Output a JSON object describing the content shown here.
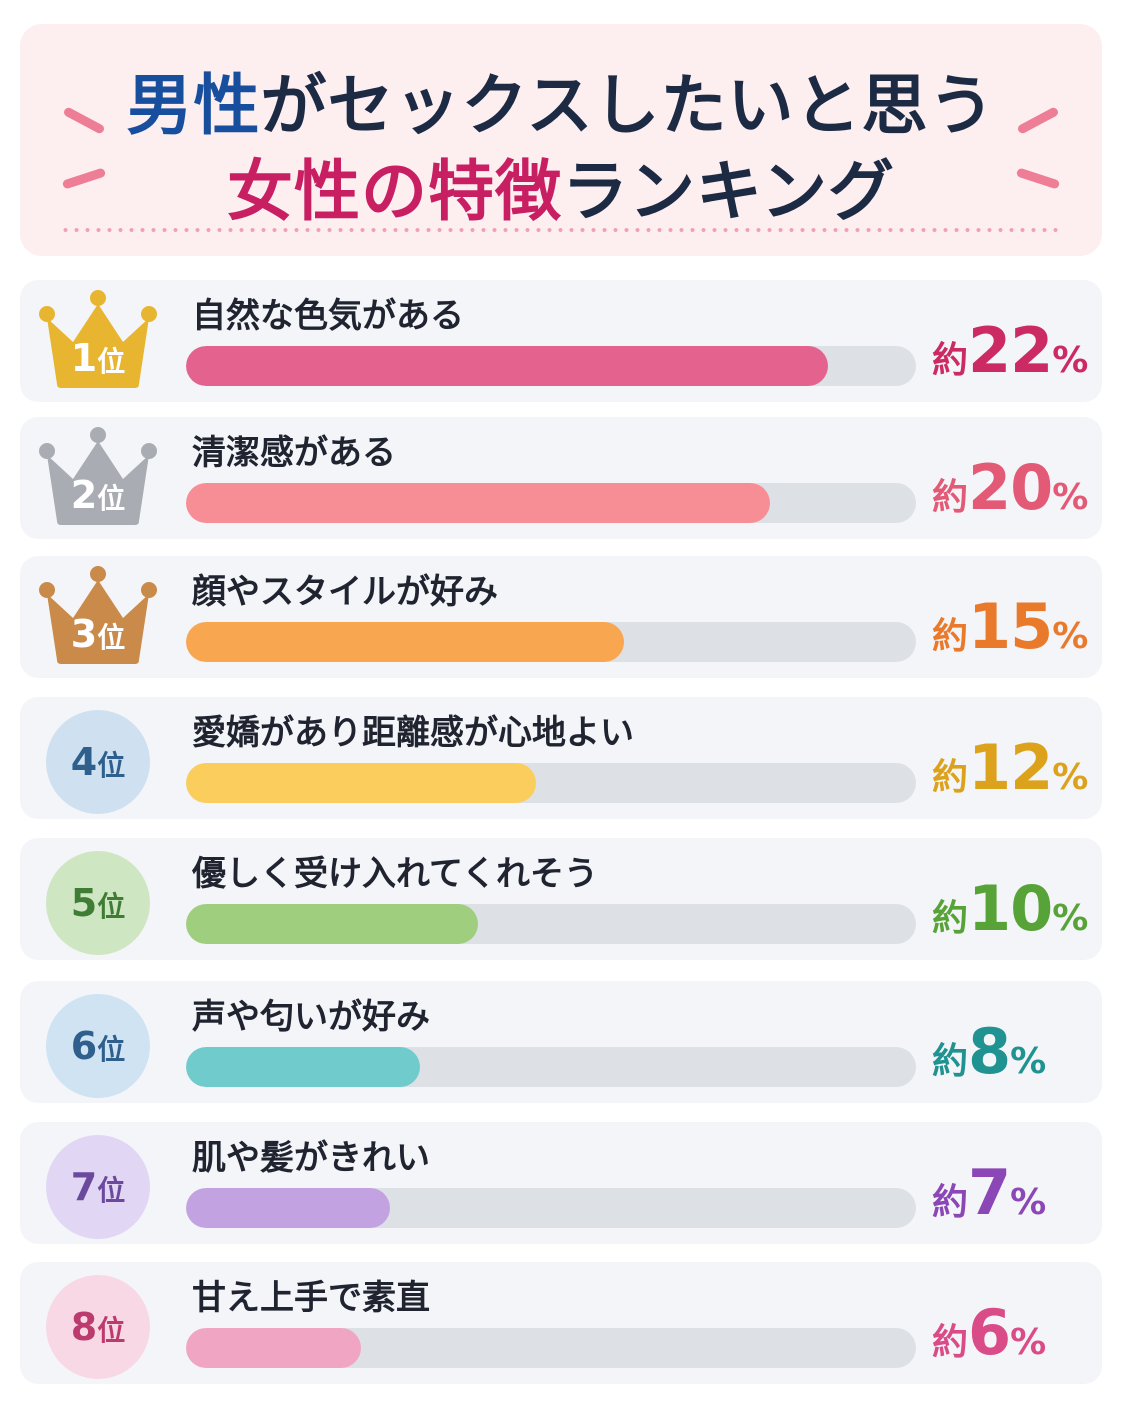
{
  "title": {
    "line1": [
      {
        "text": "男性",
        "style": "blue"
      },
      {
        "text": "がセックスしたいと思う",
        "style": "dark"
      }
    ],
    "line2": [
      {
        "text": "女性の特徴",
        "style": "pink"
      },
      {
        "text": "ランキング",
        "style": "dark"
      }
    ]
  },
  "value_prefix": "約",
  "value_suffix": "%",
  "rank_suffix": "位",
  "chart_data": {
    "type": "bar",
    "orientation": "horizontal",
    "title": "男性がセックスしたいと思う女性の特徴ランキング",
    "unit": "%",
    "xlim": [
      0,
      25
    ],
    "categories": [
      "自然な色気がある",
      "清潔感がある",
      "顔やスタイルが好み",
      "愛嬌があり距離感が心地よい",
      "優しく受け入れてくれそう",
      "声や匂いが好み",
      "肌や髪がきれい",
      "甘え上手で素直"
    ],
    "ranks": [
      "1",
      "2",
      "3",
      "4",
      "5",
      "6",
      "7",
      "8"
    ],
    "values": [
      22,
      20,
      15,
      12,
      10,
      8,
      7,
      6
    ],
    "bar_colors": [
      "#e4628e",
      "#f88e95",
      "#f8a64f",
      "#fbcd5d",
      "#9fcf7e",
      "#6fcbcc",
      "#c3a2e2",
      "#f0a6c2"
    ],
    "value_colors": [
      "#cc2a63",
      "#e35a77",
      "#ea7a2b",
      "#dca21c",
      "#57a338",
      "#1f9291",
      "#8c47b6",
      "#d94c88"
    ],
    "badge_styles": [
      "crown",
      "crown",
      "crown",
      "circle",
      "circle",
      "circle",
      "circle",
      "circle"
    ],
    "badge_colors": [
      "#e8b530",
      "#a9acb3",
      "#c98a4a",
      "#cfe1f1",
      "#cfe6c3",
      "#cfe3f3",
      "#e1d7f5",
      "#f8d8e5"
    ],
    "badge_text_colors": [
      "#ffffff",
      "#ffffff",
      "#ffffff",
      "#2e5f8d",
      "#3f7d34",
      "#2e5f8d",
      "#6b4a9e",
      "#bb3b6e"
    ]
  }
}
